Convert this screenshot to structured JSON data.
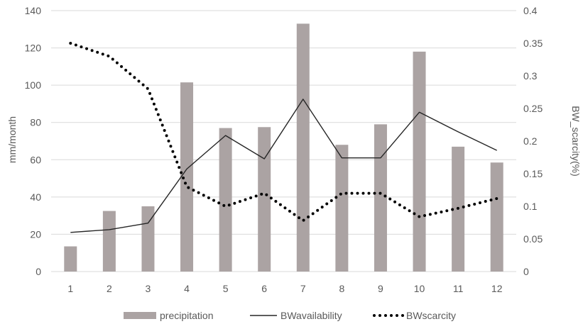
{
  "chart_data": {
    "type": "bar",
    "categories": [
      "1",
      "2",
      "3",
      "4",
      "5",
      "6",
      "7",
      "8",
      "9",
      "10",
      "11",
      "12"
    ],
    "ylabel": "mm/month",
    "y2label": "BW_scarcity(%)",
    "ylim": [
      0,
      140
    ],
    "y2lim": [
      0,
      0.4
    ],
    "yticks": [
      "0",
      "20",
      "40",
      "60",
      "80",
      "100",
      "120",
      "140"
    ],
    "y2ticks": [
      "0",
      "0.05",
      "0.1",
      "0.15",
      "0.2",
      "0.25",
      "0.3",
      "0.35",
      "0.4"
    ],
    "grid": true,
    "legend_position": "bottom",
    "series": [
      {
        "name": "precipitation",
        "type": "bar",
        "axis": "left",
        "color": "#aba3a3",
        "values": [
          13.5,
          32.5,
          35,
          101.5,
          77,
          77.5,
          133,
          68,
          79,
          118,
          67,
          58.5
        ]
      },
      {
        "name": "BWavailability",
        "type": "line",
        "axis": "left",
        "color": "#262626",
        "style": "solid",
        "values": [
          21,
          22.5,
          26,
          55,
          73,
          60.5,
          92.5,
          61,
          61,
          85.5,
          75,
          65
        ]
      },
      {
        "name": "BWscarcity",
        "type": "line",
        "axis": "right",
        "color": "#000000",
        "style": "dotted",
        "values": [
          0.35,
          0.33,
          0.28,
          0.13,
          0.1,
          0.12,
          0.078,
          0.12,
          0.12,
          0.084,
          0.097,
          0.112
        ]
      }
    ]
  }
}
